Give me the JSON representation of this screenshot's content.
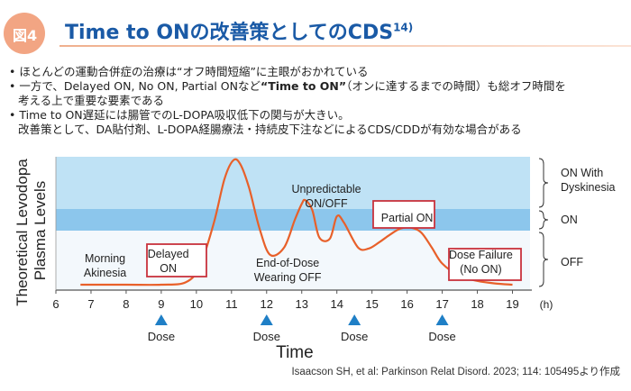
{
  "header": {
    "figure_label": "図4",
    "title": "Time to ONの改善策としてのCDS",
    "title_ref": "14)"
  },
  "bullets": [
    {
      "text": "ほとんどの運動合併症の治療は“オフ時間短縮”に主眼がおかれている"
    },
    {
      "pre": "一方で、Delayed ON, No ON, Partial ONなど",
      "bold": "“Time to ON”",
      "post": "（オンに達するまでの時間）も総オフ時間を",
      "cont": "考える上で重要な要素である"
    },
    {
      "text": "Time to ON遅延には腸管でのL-DOPA吸収低下の関与が大きい。",
      "cont": "改善策として、DA貼付剤、L-DOPA経腸療法・持続皮下注などによるCDS/CDDが有効な場合がある"
    }
  ],
  "citation": "Isaacson SH, et al: Parkinson Relat Disord. 2023; 114: 105495より作成",
  "chart_data": {
    "type": "line",
    "ylabel": "Theoretical Levodopa Plasma Levels",
    "xlabel": "Time",
    "xlim": [
      6,
      19.5
    ],
    "x_ticks": [
      "6",
      "7",
      "8",
      "9",
      "10",
      "11",
      "12",
      "13",
      "14",
      "15",
      "16",
      "17",
      "18",
      "19"
    ],
    "x_unit": "(h)",
    "zones": [
      {
        "name": "ON With Dyskinesia",
        "color": "#bfe2f5"
      },
      {
        "name": "ON",
        "color": "#8cc6ec"
      },
      {
        "name": "OFF",
        "color": "#ffffff"
      }
    ],
    "series": [
      {
        "color": "#e8602a",
        "x": [
          6.7,
          8.0,
          9.0,
          9.7,
          10.1,
          10.5,
          10.8,
          11.05,
          11.25,
          11.5,
          11.8,
          12.1,
          12.5,
          12.8,
          13.0,
          13.1,
          13.3,
          13.5,
          13.8,
          14.0,
          14.2,
          14.6,
          14.9,
          15.2,
          15.5,
          15.8,
          16.1,
          16.4,
          16.7,
          17.0,
          17.5,
          18.0,
          18.5,
          19.0
        ],
        "y": [
          0,
          0,
          0,
          0.02,
          0.15,
          0.5,
          0.85,
          1.0,
          0.97,
          0.78,
          0.45,
          0.24,
          0.3,
          0.52,
          0.65,
          0.68,
          0.6,
          0.38,
          0.37,
          0.55,
          0.5,
          0.3,
          0.29,
          0.34,
          0.4,
          0.45,
          0.46,
          0.42,
          0.3,
          0.17,
          0.07,
          0.03,
          0.01,
          0.0
        ]
      }
    ],
    "annotations": [
      {
        "text": "Morning Akinesia",
        "lines": [
          "Morning",
          "Akinesia"
        ],
        "boxed": false
      },
      {
        "text": "Delayed ON",
        "lines": [
          "Delayed",
          "ON"
        ],
        "boxed": true
      },
      {
        "text": "End-of-Dose Wearing OFF",
        "lines": [
          "End-of-Dose",
          "Wearing OFF"
        ],
        "boxed": false
      },
      {
        "text": "Unpredictable ON/OFF",
        "lines": [
          "Unpredictable",
          "ON/OFF"
        ],
        "boxed": false
      },
      {
        "text": "Partial ON",
        "lines": [
          "Partial ON"
        ],
        "boxed": true
      },
      {
        "text": "Dose Failure (No ON)",
        "lines": [
          "Dose Failure",
          "(No ON)"
        ],
        "boxed": true
      }
    ],
    "doses": [
      {
        "x": 9,
        "label": "Dose"
      },
      {
        "x": 12,
        "label": "Dose"
      },
      {
        "x": 14.5,
        "label": "Dose"
      },
      {
        "x": 17,
        "label": "Dose"
      }
    ],
    "colors": {
      "line": "#e8602a",
      "box": "#c8323c",
      "marker": "#1f7fc6",
      "text": "#222222"
    }
  }
}
